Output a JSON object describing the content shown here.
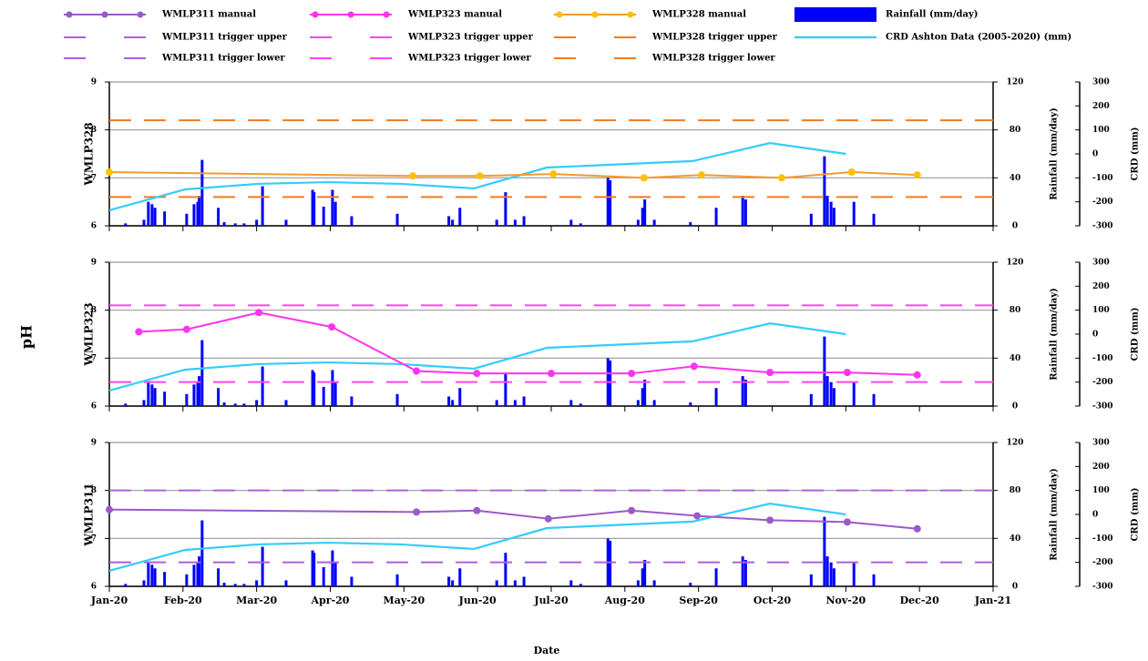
{
  "chart_data": {
    "type": "multi-panel",
    "xlabel": "Date",
    "ylabel": "pH",
    "xlim": [
      0,
      12
    ],
    "xticks": [
      {
        "value": 0,
        "label": "Jan-20"
      },
      {
        "value": 1,
        "label": "Feb-20"
      },
      {
        "value": 2,
        "label": "Mar-20"
      },
      {
        "value": 3,
        "label": "Apr-20"
      },
      {
        "value": 4,
        "label": "May-20"
      },
      {
        "value": 5,
        "label": "Jun-20"
      },
      {
        "value": 6,
        "label": "Jul-20"
      },
      {
        "value": 7,
        "label": "Aug-20"
      },
      {
        "value": 8,
        "label": "Sep-20"
      },
      {
        "value": 9,
        "label": "Oct-20"
      },
      {
        "value": 10,
        "label": "Nov-20"
      },
      {
        "value": 11,
        "label": "Dec-20"
      },
      {
        "value": 12,
        "label": "Jan-21"
      }
    ],
    "ylim": [
      6,
      9
    ],
    "yticks": [
      6,
      7,
      8,
      9
    ],
    "grid": true,
    "rain_label": "Rainfall (mm/day)",
    "rain_lim": [
      0,
      120
    ],
    "rain_ticks": [
      0,
      40,
      80,
      120
    ],
    "crd_label": "CRD (mm)",
    "crd_lim": [
      -300,
      300
    ],
    "crd_ticks": [
      -300,
      -200,
      -100,
      0,
      100,
      200,
      300
    ],
    "rainfall": {
      "name": "Rainfall (mm/day)",
      "color": "#0000ff",
      "x": [
        0.22,
        0.47,
        0.53,
        0.58,
        0.62,
        0.75,
        1.05,
        1.15,
        1.2,
        1.22,
        1.26,
        1.48,
        1.56,
        1.71,
        1.83,
        2.0,
        2.08,
        2.4,
        2.76,
        2.78,
        2.91,
        3.03,
        3.07,
        3.29,
        3.91,
        4.61,
        4.66,
        4.76,
        5.26,
        5.38,
        5.51,
        5.63,
        6.27,
        6.4,
        6.77,
        6.8,
        7.18,
        7.24,
        7.27,
        7.4,
        7.89,
        8.24,
        8.6,
        8.64,
        9.53,
        9.71,
        9.75,
        9.8,
        9.84,
        10.11,
        10.38
      ],
      "values": [
        2,
        5,
        20,
        18,
        15,
        12,
        10,
        18,
        20,
        25,
        55,
        15,
        3,
        2,
        2,
        5,
        33,
        5,
        30,
        28,
        16,
        30,
        20,
        8,
        10,
        8,
        5,
        15,
        5,
        28,
        5,
        8,
        5,
        2,
        40,
        38,
        5,
        15,
        22,
        5,
        3,
        15,
        25,
        22,
        10,
        58,
        25,
        20,
        15,
        20,
        10
      ]
    },
    "crd": {
      "name": "CRD Ashton Data (2005-2020) (mm)",
      "color": "#33ccff",
      "x": [
        0,
        1.03,
        2.02,
        2.97,
        3.96,
        4.95,
        5.94,
        7.92,
        8.97,
        10.0
      ],
      "values": [
        -235,
        -148,
        -125,
        -118,
        -125,
        -144,
        -57,
        -30,
        45,
        0
      ]
    },
    "panels": [
      {
        "title": "WMLP328",
        "manual": {
          "name": "WMLP328 manual",
          "color": "#f39a2e",
          "marker_color": "#ffc000",
          "x": [
            0,
            4.12,
            5.03,
            6.03,
            7.26,
            8.04,
            9.13,
            10.08,
            10.97
          ],
          "values": [
            7.12,
            7.04,
            7.04,
            7.08,
            7.0,
            7.06,
            7.0,
            7.12,
            7.06
          ]
        },
        "trigger_upper": {
          "name": "WMLP328 trigger upper",
          "color": "#f47a20",
          "value": 8.2
        },
        "trigger_lower": {
          "name": "WMLP328 trigger lower",
          "color": "#f47a20",
          "value": 6.6
        }
      },
      {
        "title": "WMLP323",
        "manual": {
          "name": "WMLP323 manual",
          "color": "#ff33ee",
          "marker_color": "#ff33ee",
          "x": [
            0.4,
            1.05,
            2.03,
            3.02,
            4.17,
            4.99,
            6.0,
            7.09,
            7.94,
            8.97,
            10.02,
            10.97
          ],
          "values": [
            7.55,
            7.6,
            7.95,
            7.65,
            6.73,
            6.68,
            6.68,
            6.68,
            6.83,
            6.7,
            6.7,
            6.65
          ]
        },
        "trigger_upper": {
          "name": "WMLP323 trigger upper",
          "color": "#ff44ee",
          "value": 8.1
        },
        "trigger_lower": {
          "name": "WMLP323 trigger lower",
          "color": "#ff44ee",
          "value": 6.5
        }
      },
      {
        "title": "WMLP311",
        "manual": {
          "name": "WMLP311 manual",
          "color": "#9b59c9",
          "marker_color": "#9b59c9",
          "x": [
            0,
            4.17,
            4.99,
            5.96,
            7.09,
            7.98,
            8.97,
            10.02,
            10.97
          ],
          "values": [
            7.6,
            7.55,
            7.58,
            7.41,
            7.58,
            7.47,
            7.38,
            7.34,
            7.2
          ]
        },
        "trigger_upper": {
          "name": "WMLP311 trigger upper",
          "color": "#b05ce0",
          "value": 8.0
        },
        "trigger_lower": {
          "name": "WMLP311 trigger lower",
          "color": "#b05ce0",
          "value": 6.5
        }
      }
    ]
  }
}
